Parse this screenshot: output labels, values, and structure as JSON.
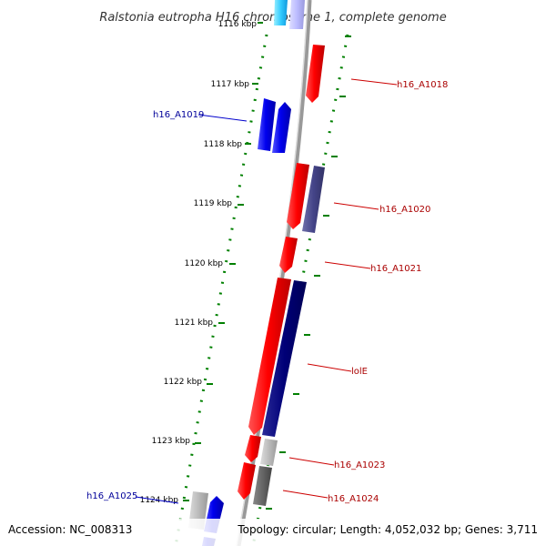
{
  "title": "Ralstonia eutropha H16 chromosome 1, complete genome",
  "footer": {
    "accession": "Accession: NC_008313",
    "summary": "Topology: circular; Length: 4,052,032 bp; Genes: 3,711"
  },
  "colors": {
    "forward_gene": "#0000ee",
    "reverse_gene": "#ee0000",
    "navy_gene": "#000077",
    "slate_gene": "#444488",
    "gray_gene": "#999999",
    "light_gray_gene": "#cccccc",
    "tick": "#008000",
    "backbone": "#888888",
    "forward_label": "#000099",
    "reverse_label": "#aa0000"
  },
  "kbp_ticks": [
    "1116 kbp",
    "1117 kbp",
    "1118 kbp",
    "1119 kbp",
    "1120 kbp",
    "1121 kbp",
    "1122 kbp",
    "1123 kbp",
    "1124 kbp"
  ],
  "genes": [
    {
      "name": "",
      "strand": "forward",
      "color": "light_blue"
    },
    {
      "name": "",
      "strand": "forward",
      "color": "lavender"
    },
    {
      "name": "h16_A1018",
      "strand": "reverse",
      "color": "red"
    },
    {
      "name": "h16_A1019",
      "strand": "forward",
      "color": "blue"
    },
    {
      "name": "",
      "strand": "forward",
      "color": "blue"
    },
    {
      "name": "h16_A1020",
      "strand": "reverse",
      "color": "red"
    },
    {
      "name": "",
      "strand": "reverse",
      "color": "slate"
    },
    {
      "name": "h16_A1021",
      "strand": "reverse",
      "color": "red"
    },
    {
      "name": "lolE",
      "strand": "reverse",
      "color": "red"
    },
    {
      "name": "",
      "strand": "reverse",
      "color": "navy"
    },
    {
      "name": "h16_A1023",
      "strand": "reverse",
      "color": "gray"
    },
    {
      "name": "h16_A1024",
      "strand": "reverse",
      "color": "dark_gray"
    },
    {
      "name": "h16_A1025",
      "strand": "forward",
      "color": "gray"
    },
    {
      "name": "",
      "strand": "forward",
      "color": "blue"
    }
  ]
}
